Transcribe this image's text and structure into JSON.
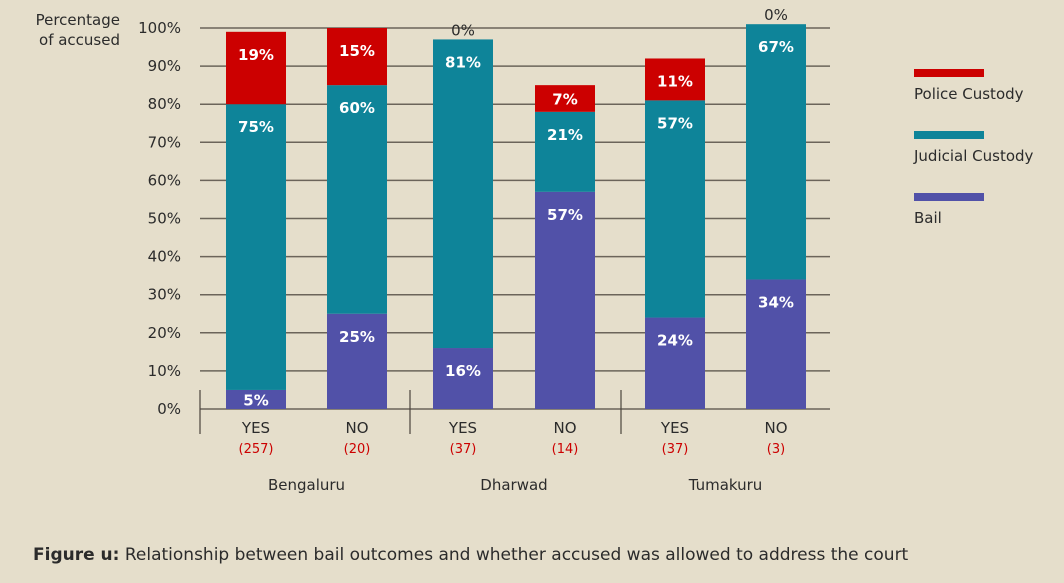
{
  "chart_data": {
    "type": "bar",
    "stacked": true,
    "ylabel": "Percentage of accused",
    "ylim": [
      0,
      100
    ],
    "yticks": [
      "0%",
      "10%",
      "20%",
      "30%",
      "40%",
      "50%",
      "60%",
      "70%",
      "80%",
      "90%",
      "100%"
    ],
    "grid": true,
    "legend_position": "right",
    "groups": [
      "Bengaluru",
      "Dharwad",
      "Tumakuru"
    ],
    "categories": [
      "YES",
      "NO",
      "YES",
      "NO",
      "YES",
      "NO"
    ],
    "counts": [
      "(257)",
      "(20)",
      "(37)",
      "(14)",
      "(37)",
      "(3)"
    ],
    "series": [
      {
        "name": "Bail",
        "color": "#5151a8",
        "values": [
          5,
          25,
          16,
          57,
          24,
          34
        ]
      },
      {
        "name": "Judicial Custody",
        "color": "#0e8499",
        "values": [
          75,
          60,
          81,
          21,
          57,
          67
        ]
      },
      {
        "name": "Police Custody",
        "color": "#cc0000",
        "values": [
          19,
          15,
          0,
          7,
          11,
          0
        ]
      }
    ],
    "legend_order": [
      2,
      1,
      0
    ]
  },
  "caption": {
    "label": "Figure u:",
    "text": " Relationship between bail outcomes and whether accused was allowed to address the court"
  }
}
